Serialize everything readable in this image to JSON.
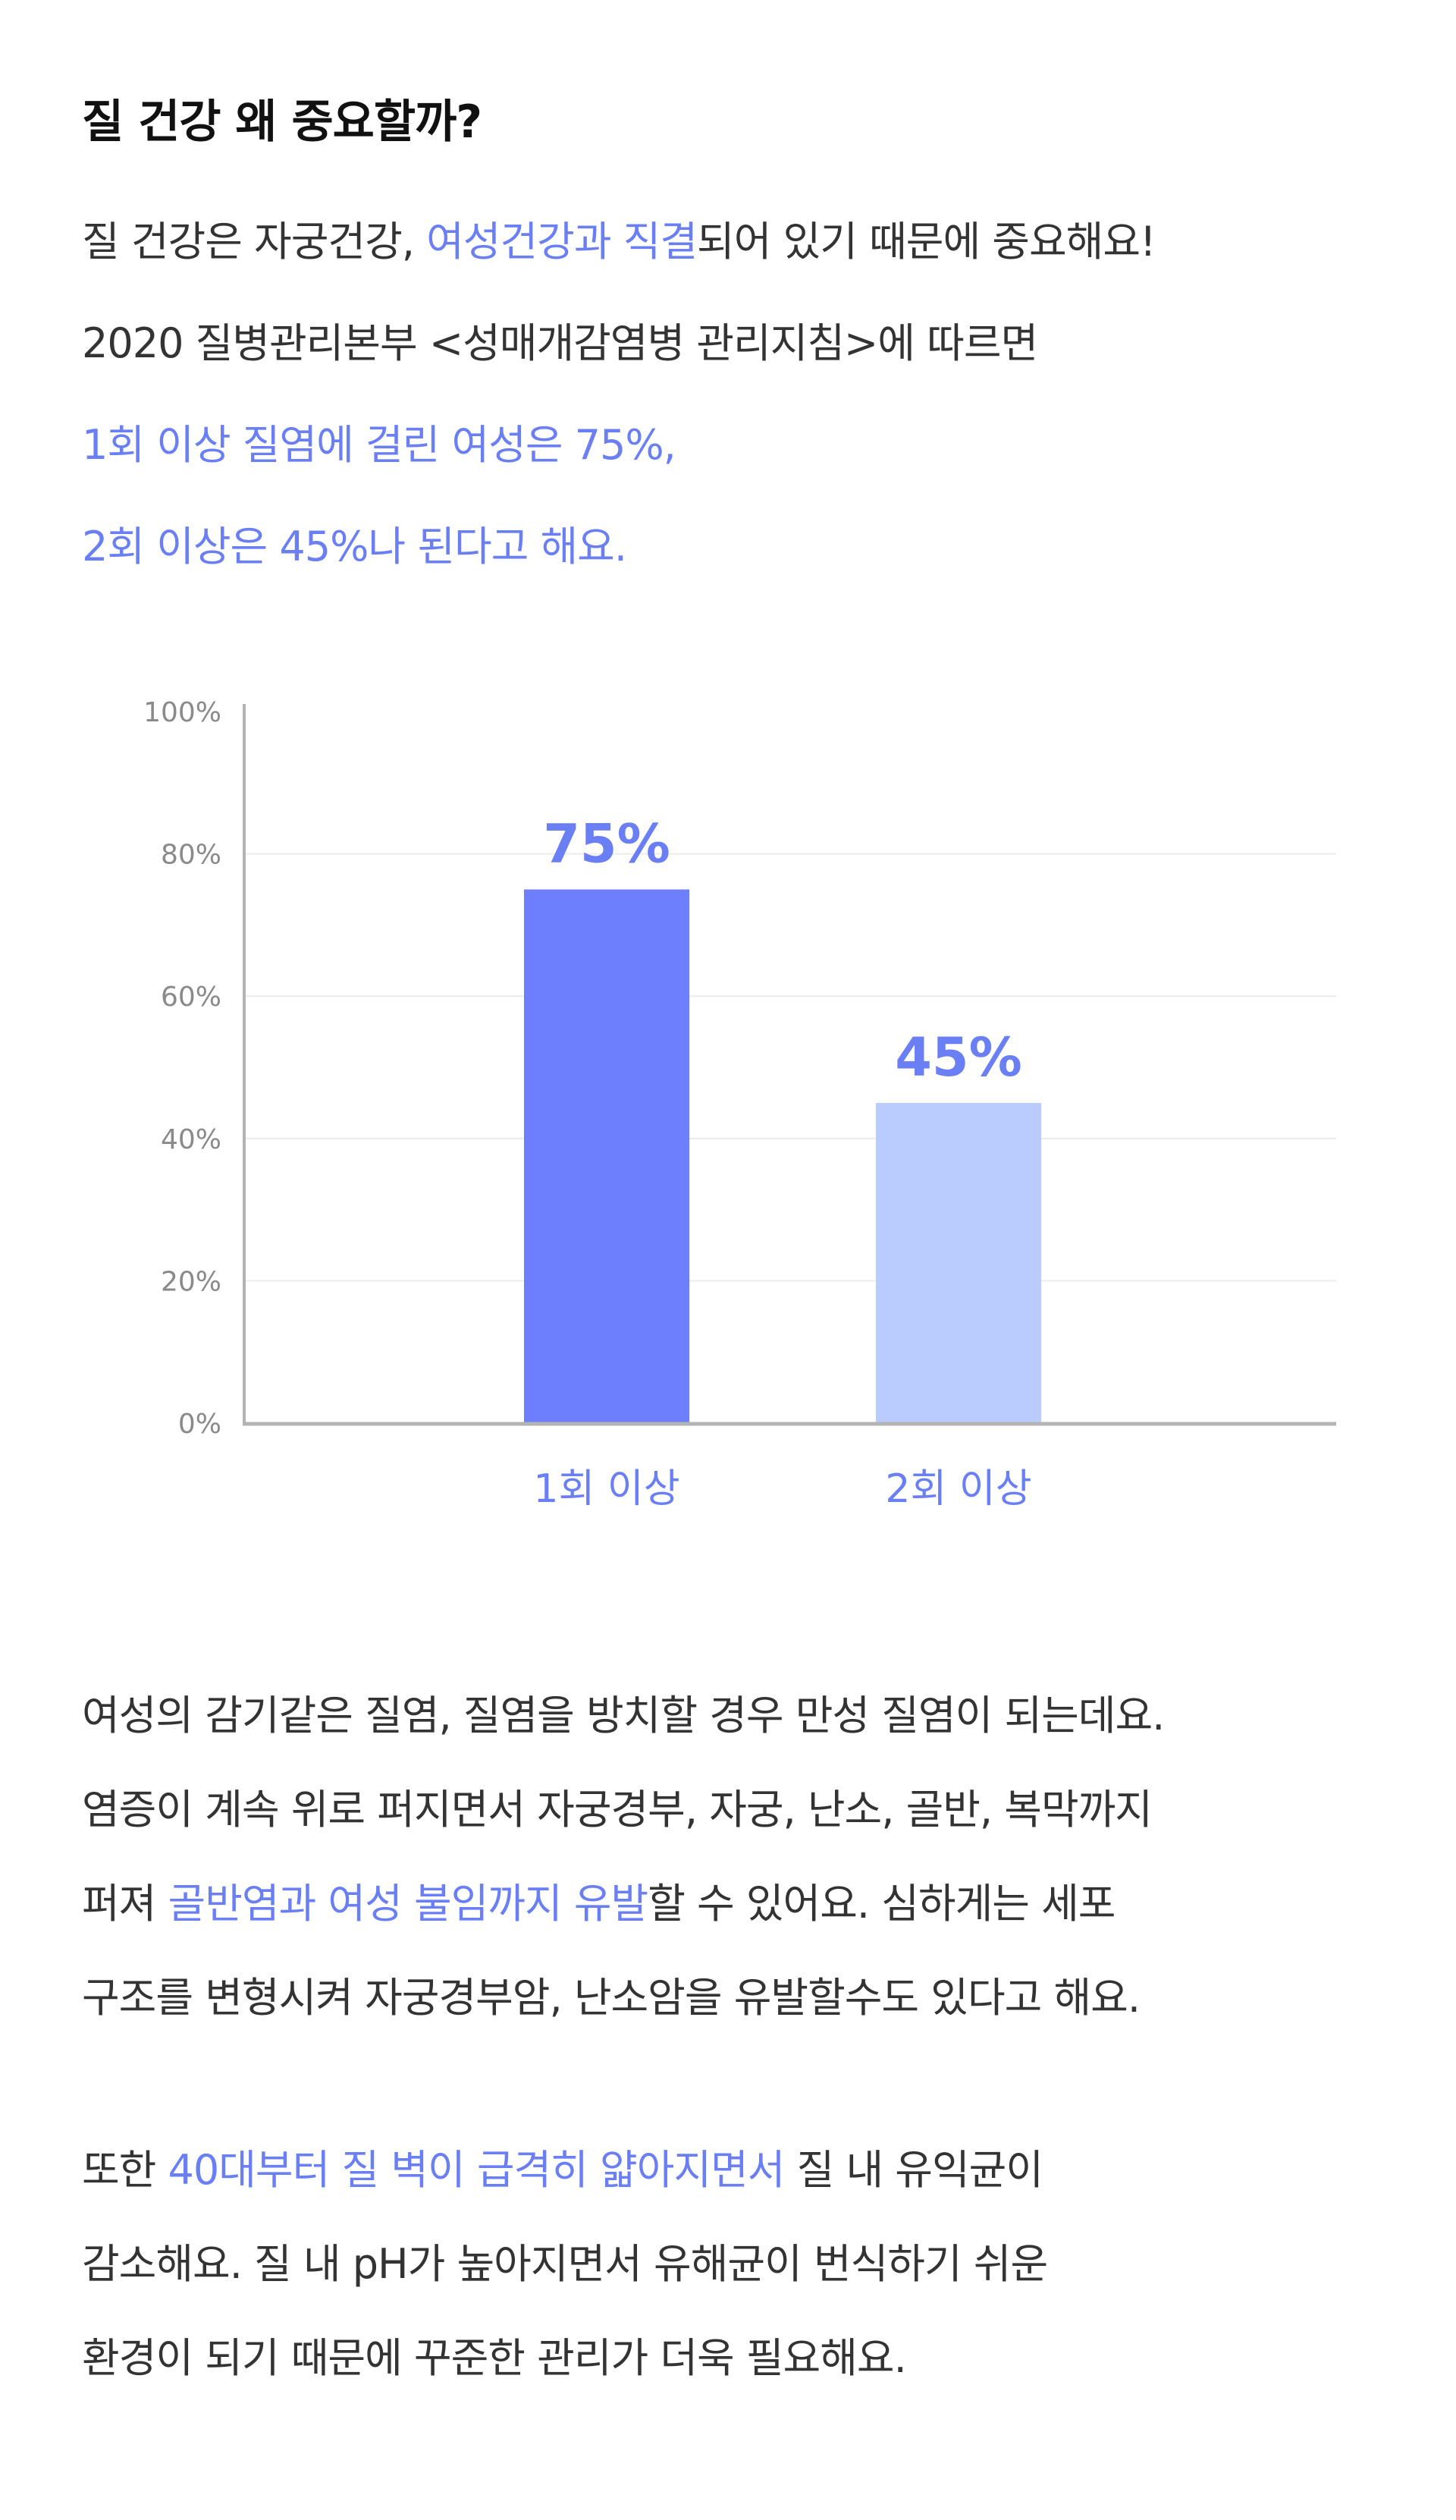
{
  "heading": "질 건강 왜 중요할까?",
  "intro": {
    "line1": [
      "질 건강은 자궁건강, ",
      "여성건강과 직결",
      "되어 있기 때문에 중요해요!"
    ],
    "line2": "2020 질병관리본부 <성매개감염병 관리지침>에 따르면",
    "line3": "1회 이상 질염에 걸린 여성은 75%,",
    "line4": "2회 이상은 45%나 된다고 해요."
  },
  "paragraph2": {
    "line1": "여성의 감기같은 질염, 질염을 방치할 경우 만성 질염이 되는데요.",
    "line2": "염증이 계속 위로 퍼지면서 자궁경부, 자궁, 난소, 골반, 복막까지",
    "line3": [
      "퍼져 ",
      "골반염과 여성 불임까지 유발",
      "할 수 있어요. 심하게는 세포"
    ],
    "line4": "구조를 변형시켜 자궁경부암, 난소암을 유발할수도 있다고 해요."
  },
  "paragraph3": {
    "line1": [
      "또한 ",
      "40대부터 질 벽이 급격히 얇아지면서",
      " 질 내 유익균이"
    ],
    "line2": "감소해요. 질 내 pH가 높아지면서 유해균이 번식하기 쉬운",
    "line3": "환경이 되기 때문에 꾸준한 관리가 더욱 필요해요."
  },
  "colors": {
    "accent": "#6b7ff5",
    "bar_primary": "#6e7ffe",
    "bar_secondary": "#bacbfd",
    "axis": "#b3b3b3",
    "grid": "#ececec"
  },
  "chart_data": {
    "type": "bar",
    "title": "",
    "xlabel": "",
    "ylabel": "",
    "categories": [
      "1회 이상",
      "2회 이상"
    ],
    "values": [
      75,
      45
    ],
    "data_labels": [
      "75%",
      "45%"
    ],
    "ylim": [
      0,
      100
    ],
    "yticks": [
      0,
      20,
      40,
      60,
      80,
      100
    ],
    "ytick_labels": [
      "0%",
      "20%",
      "40%",
      "60%",
      "80%",
      "100%"
    ],
    "grid": true,
    "legend": "none"
  }
}
